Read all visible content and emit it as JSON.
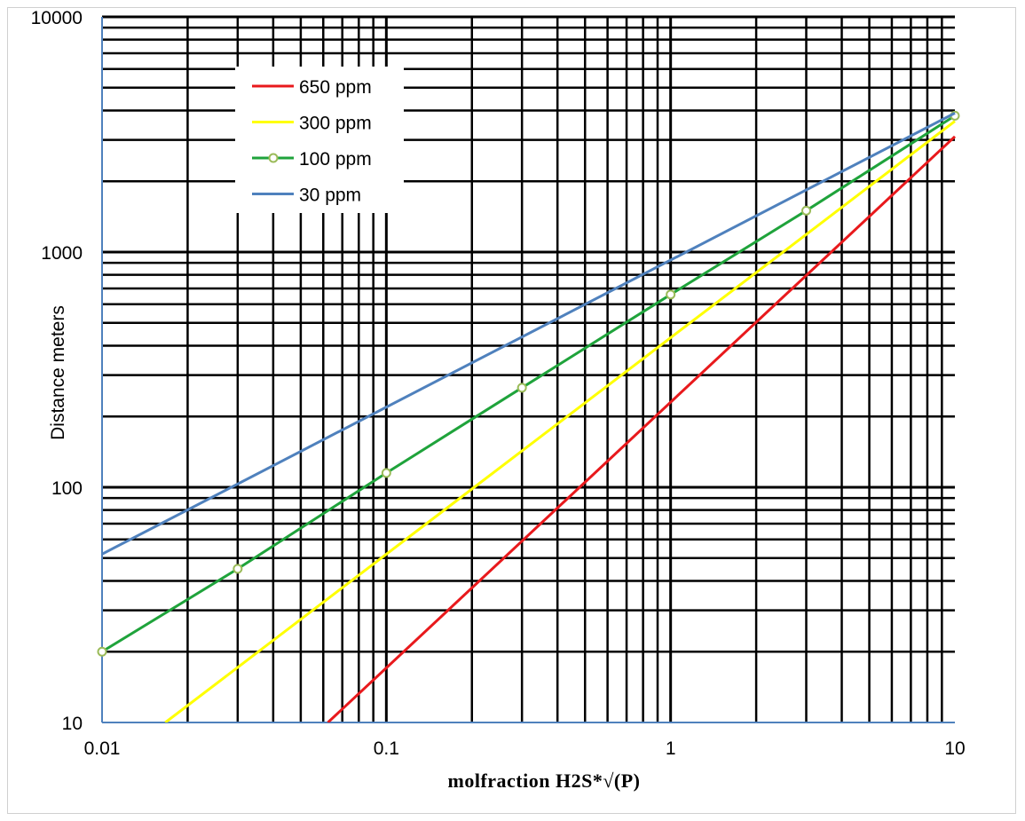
{
  "chart_data": {
    "type": "line",
    "title": "",
    "xlabel": "molfraction H2S*√(P)",
    "ylabel": "Distance meters",
    "xscale": "log",
    "yscale": "log",
    "xlim": [
      0.01,
      10
    ],
    "ylim": [
      10,
      10000
    ],
    "x_ticks": [
      "0.01",
      "0.1",
      "1",
      "10"
    ],
    "y_ticks": [
      "10",
      "100",
      "1000",
      "10000"
    ],
    "grid": "major and minor",
    "legend_position": "top-left",
    "series": [
      {
        "name": "650 ppm",
        "color": "#e8191c",
        "marker": "none",
        "x": [
          0.0623,
          10
        ],
        "y": [
          10,
          3100
        ]
      },
      {
        "name": "300 ppm",
        "color": "#ffff00",
        "marker": "none",
        "x": [
          0.0167,
          10
        ],
        "y": [
          10,
          3600
        ]
      },
      {
        "name": "100 ppm",
        "color": "#1fa33b",
        "marker": "circle",
        "x": [
          0.01,
          0.03,
          0.1,
          0.3,
          1,
          3,
          10
        ],
        "y": [
          20,
          45,
          115,
          265,
          660,
          1500,
          3800
        ]
      },
      {
        "name": "30 ppm",
        "color": "#4f81bd",
        "marker": "none",
        "x": [
          0.01,
          10
        ],
        "y": [
          52,
          3900
        ]
      }
    ]
  }
}
